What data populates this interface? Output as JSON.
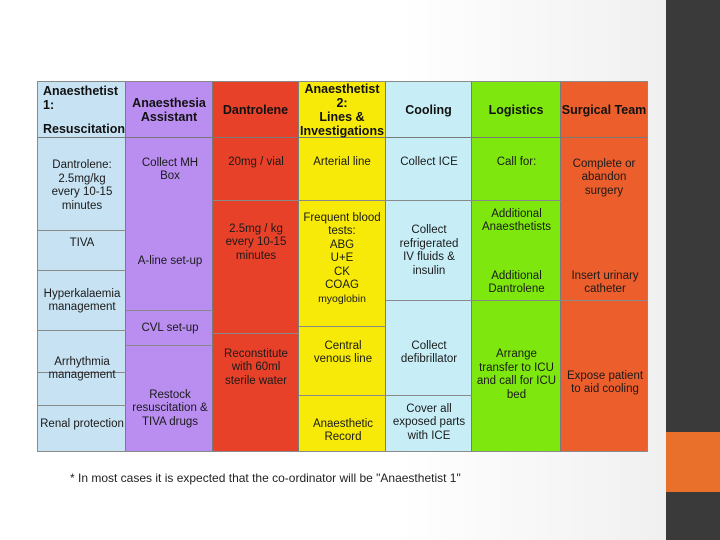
{
  "colors": {
    "col1": "#c7e2f2",
    "col2": "#b98ef0",
    "col3": "#e8412a",
    "col4": "#f7ea08",
    "col5": "#c7eef7",
    "col6": "#7ee80e",
    "col7": "#ec5e2c",
    "sidebar": "#3a3a3a",
    "accent": "#e8702a"
  },
  "headers": {
    "anaesthetist1_line1": "Anaesthetist 1:",
    "anaesthetist1_line2": "Resuscitation",
    "assistant": "Anaesthesia Assistant",
    "dantrolene": "Dantrolene",
    "anaesthetist2_line1": "Anaesthetist 2:",
    "anaesthetist2_line2": "Lines & Investigations",
    "cooling": "Cooling",
    "logistics": "Logistics",
    "surgical": "Surgical Team"
  },
  "col1": {
    "dose": "Dantrolene: 2.5mg/kg every 10-15 minutes",
    "tiva": "TIVA",
    "hyperkalaemia": "Hyperkalaemia management",
    "arrhythmia": "Arrhythmia management",
    "renal": "Renal protection"
  },
  "col2": {
    "mhbox": "Collect MH Box",
    "aline": "A-line set-up",
    "cvl": "CVL set-up",
    "restock": "Restock resuscitation & TIVA drugs"
  },
  "col3": {
    "vial": "20mg / vial",
    "dose": "2.5mg / kg every 10-15 minutes",
    "reconstitute": "Reconstitute with 60ml sterile water"
  },
  "col4": {
    "arterial": "Arterial line",
    "bloods_title": "Frequent blood tests:",
    "abg": "ABG",
    "ue": "U+E",
    "ck": "CK",
    "coag": "COAG",
    "myoglobin": "myoglobin",
    "central": "Central venous line",
    "record": "Anaesthetic Record"
  },
  "col5": {
    "ice": "Collect ICE",
    "refrigerated": "Collect refrigerated IV fluids & insulin",
    "defib": "Collect defibrillator",
    "cover": "Cover all exposed parts with ICE"
  },
  "col6": {
    "callfor": "Call for:",
    "additional_anaes": "Additional Anaesthetists",
    "additional_dant": "Additional Dantrolene",
    "transfer": "Arrange transfer to ICU and call for ICU bed"
  },
  "col7": {
    "complete": "Complete or abandon surgery",
    "catheter": "Insert urinary catheter",
    "expose": "Expose patient to aid cooling"
  },
  "footnote": "* In most cases it is expected that the co-ordinator will be \"Anaesthetist 1\""
}
